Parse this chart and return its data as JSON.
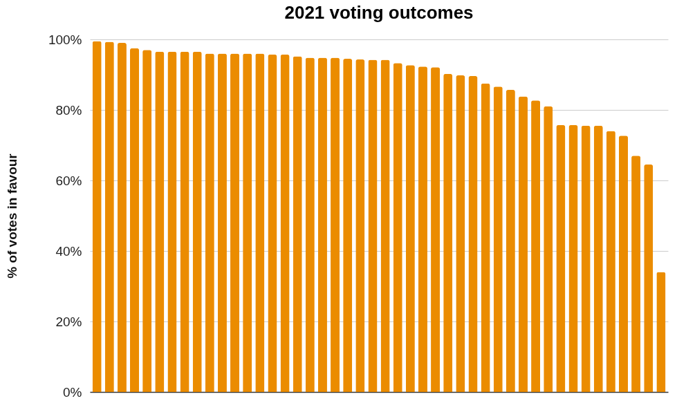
{
  "chart_data": {
    "type": "bar",
    "title": "2021 voting outcomes",
    "ylabel": "% of votes in favour",
    "categories": [
      null,
      null,
      null,
      null,
      null,
      null,
      null,
      null,
      null,
      null,
      null,
      null,
      null,
      null,
      null,
      null,
      null,
      null,
      null,
      null,
      null,
      null,
      null,
      null,
      null,
      null,
      null,
      null,
      null,
      null,
      null,
      null,
      null,
      null,
      null,
      null,
      null,
      null,
      null,
      null,
      null,
      null,
      null,
      null,
      null,
      null
    ],
    "values": [
      99.5,
      99.3,
      99,
      97.5,
      97,
      96.5,
      96.5,
      96.5,
      96.5,
      96,
      96,
      96,
      96,
      96,
      95.7,
      95.7,
      95.2,
      94.8,
      94.8,
      94.8,
      94.5,
      94.3,
      94.2,
      94.2,
      93.3,
      92.7,
      92.3,
      92.1,
      90.2,
      89.8,
      89.6,
      87.5,
      86.6,
      85.7,
      83.8,
      82.7,
      81,
      75.7,
      75.7,
      75.5,
      75.5,
      74,
      72.7,
      67,
      64.5,
      34
    ],
    "color": "#eb8c00",
    "ylim": [
      0,
      100
    ],
    "yticks": [
      {
        "value": 0,
        "label": "0%"
      },
      {
        "value": 20,
        "label": "20%"
      },
      {
        "value": 40,
        "label": "40%"
      },
      {
        "value": 60,
        "label": "60%"
      },
      {
        "value": 80,
        "label": "80%"
      },
      {
        "value": 100,
        "label": "100%"
      }
    ],
    "grid": "y"
  }
}
